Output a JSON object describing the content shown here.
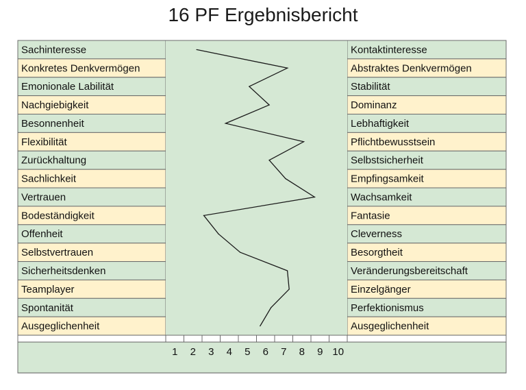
{
  "title": "16 PF Ergebnisbericht",
  "colors": {
    "green": "#d5e8d4",
    "yellow": "#fff2cc",
    "border": "#6b6b6b",
    "line": "#1a1a1a"
  },
  "chart_data": {
    "type": "line",
    "title": "16 PF Ergebnisbericht",
    "left_labels": [
      "Sachinteresse",
      "Konkretes Denkvermögen",
      "Emonionale Labilität",
      "Nachgiebigkeit",
      "Besonnenheit",
      "Flexibilität",
      "Zurückhaltung",
      "Sachlichkeit",
      "Vertrauen",
      "Bodeständigkeit",
      "Offenheit",
      "Selbstvertrauen",
      "Sicherheitsdenken",
      "Teamplayer",
      "Spontanität",
      "Ausgeglichenheit"
    ],
    "right_labels": [
      "Kontaktinteresse",
      "Abstraktes Denkvermögen",
      "Stabilität",
      "Dominanz",
      "Lebhaftigkeit",
      "Pflichtbewusstsein",
      "Selbstsicherheit",
      "Empfingsamkeit",
      "Wachsamkeit",
      "Fantasie",
      "Cleverness",
      "Besorgtheit",
      "Veränderungsbereitschaft",
      "Einzelgänger",
      "Perfektionismus",
      "Ausgeglichenheit"
    ],
    "row_colors": [
      "green",
      "yellow",
      "green",
      "yellow",
      "green",
      "yellow",
      "green",
      "yellow",
      "green",
      "yellow",
      "green",
      "yellow",
      "green",
      "yellow",
      "green",
      "yellow"
    ],
    "ticks": [
      1,
      2,
      3,
      4,
      5,
      6,
      7,
      8,
      9,
      10
    ],
    "xlim": [
      0.5,
      10.5
    ],
    "values": [
      2.2,
      7.2,
      5.1,
      6.2,
      3.8,
      8.1,
      6.2,
      7.1,
      8.7,
      2.6,
      3.4,
      4.6,
      7.2,
      7.3,
      6.3,
      5.7
    ],
    "grid": false
  }
}
